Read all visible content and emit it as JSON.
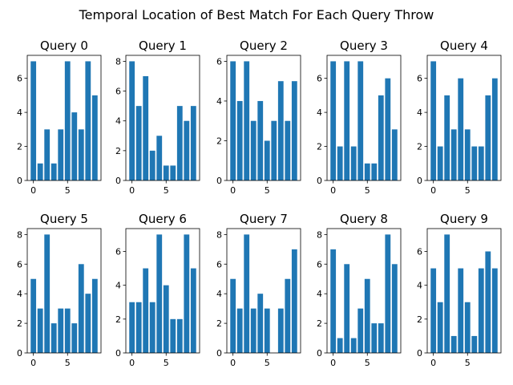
{
  "figure": {
    "suptitle": "Temporal Location of Best Match For Each Query Throw"
  },
  "colors": {
    "bar": "#1f77b4",
    "axis": "#000000",
    "background": "#ffffff"
  },
  "chart_data": [
    {
      "type": "bar",
      "title": "Query 0",
      "categories": [
        0,
        1,
        2,
        3,
        4,
        5,
        6,
        7,
        8,
        9
      ],
      "values": [
        7,
        1,
        3,
        1,
        3,
        7,
        4,
        3,
        7,
        5
      ],
      "ylim": [
        0,
        7.35
      ],
      "xlim": [
        -0.9,
        9.9
      ],
      "yticks": [
        0,
        2,
        4,
        6
      ],
      "xticks": [
        0,
        5
      ],
      "grid": false
    },
    {
      "type": "bar",
      "title": "Query 1",
      "categories": [
        0,
        1,
        2,
        3,
        4,
        5,
        6,
        7,
        8,
        9
      ],
      "values": [
        8,
        5,
        7,
        2,
        3,
        1,
        1,
        5,
        4,
        5
      ],
      "ylim": [
        0,
        8.4
      ],
      "xlim": [
        -0.9,
        9.9
      ],
      "yticks": [
        0,
        2,
        4,
        6,
        8
      ],
      "xticks": [
        0,
        5
      ],
      "grid": false
    },
    {
      "type": "bar",
      "title": "Query 2",
      "categories": [
        0,
        1,
        2,
        3,
        4,
        5,
        6,
        7,
        8,
        9
      ],
      "values": [
        6,
        4,
        6,
        3,
        4,
        2,
        3,
        5,
        3,
        5
      ],
      "ylim": [
        0,
        6.3
      ],
      "xlim": [
        -0.9,
        9.9
      ],
      "yticks": [
        0,
        2,
        4,
        6
      ],
      "xticks": [
        0,
        5
      ],
      "grid": false
    },
    {
      "type": "bar",
      "title": "Query 3",
      "categories": [
        0,
        1,
        2,
        3,
        4,
        5,
        6,
        7,
        8,
        9
      ],
      "values": [
        7,
        2,
        7,
        2,
        7,
        1,
        1,
        5,
        6,
        3
      ],
      "ylim": [
        0,
        7.35
      ],
      "xlim": [
        -0.9,
        9.9
      ],
      "yticks": [
        0,
        2,
        4,
        6
      ],
      "xticks": [
        0,
        5
      ],
      "grid": false
    },
    {
      "type": "bar",
      "title": "Query 4",
      "categories": [
        0,
        1,
        2,
        3,
        4,
        5,
        6,
        7,
        8,
        9
      ],
      "values": [
        7,
        2,
        5,
        3,
        6,
        3,
        2,
        2,
        5,
        6
      ],
      "ylim": [
        0,
        7.35
      ],
      "xlim": [
        -0.9,
        9.9
      ],
      "yticks": [
        0,
        2,
        4,
        6
      ],
      "xticks": [
        0,
        5
      ],
      "grid": false
    },
    {
      "type": "bar",
      "title": "Query 5",
      "categories": [
        0,
        1,
        2,
        3,
        4,
        5,
        6,
        7,
        8,
        9
      ],
      "values": [
        5,
        3,
        8,
        2,
        3,
        3,
        2,
        6,
        4,
        5
      ],
      "ylim": [
        0,
        8.4
      ],
      "xlim": [
        -0.9,
        9.9
      ],
      "yticks": [
        0,
        2,
        4,
        6,
        8
      ],
      "xticks": [
        0,
        5
      ],
      "grid": false
    },
    {
      "type": "bar",
      "title": "Query 6",
      "categories": [
        0,
        1,
        2,
        3,
        4,
        5,
        6,
        7,
        8,
        9
      ],
      "values": [
        3,
        3,
        5,
        3,
        7,
        4,
        2,
        2,
        7,
        5
      ],
      "ylim": [
        0,
        7.35
      ],
      "xlim": [
        -0.9,
        9.9
      ],
      "yticks": [
        0,
        2,
        4,
        6
      ],
      "xticks": [
        0,
        5
      ],
      "grid": false
    },
    {
      "type": "bar",
      "title": "Query 7",
      "categories": [
        0,
        1,
        2,
        3,
        4,
        5,
        6,
        7,
        8,
        9
      ],
      "values": [
        5,
        3,
        8,
        3,
        4,
        3,
        0,
        3,
        5,
        7
      ],
      "ylim": [
        0,
        8.4
      ],
      "xlim": [
        -0.9,
        9.9
      ],
      "yticks": [
        0,
        2,
        4,
        6,
        8
      ],
      "xticks": [
        0,
        5
      ],
      "grid": false
    },
    {
      "type": "bar",
      "title": "Query 8",
      "categories": [
        0,
        1,
        2,
        3,
        4,
        5,
        6,
        7,
        8,
        9
      ],
      "values": [
        7,
        1,
        6,
        1,
        3,
        5,
        2,
        2,
        8,
        6
      ],
      "ylim": [
        0,
        8.4
      ],
      "xlim": [
        -0.9,
        9.9
      ],
      "yticks": [
        0,
        2,
        4,
        6,
        8
      ],
      "xticks": [
        0,
        5
      ],
      "grid": false
    },
    {
      "type": "bar",
      "title": "Query 9",
      "categories": [
        0,
        1,
        2,
        3,
        4,
        5,
        6,
        7,
        8,
        9
      ],
      "values": [
        5,
        3,
        7,
        1,
        5,
        3,
        1,
        5,
        6,
        5
      ],
      "ylim": [
        0,
        7.35
      ],
      "xlim": [
        -0.9,
        9.9
      ],
      "yticks": [
        0,
        2,
        4,
        6
      ],
      "xticks": [
        0,
        5
      ],
      "grid": false
    }
  ]
}
